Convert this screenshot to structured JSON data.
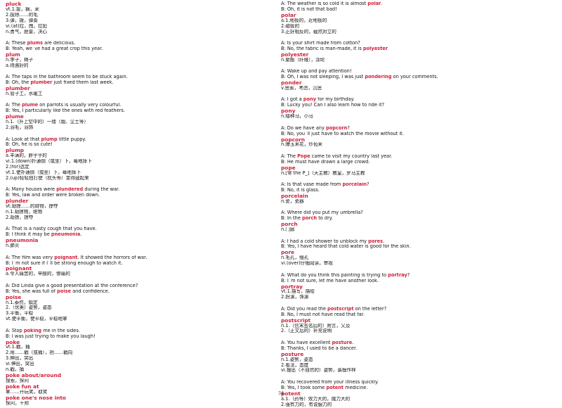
{
  "page_number": "34",
  "left_column": [
    {
      "headword": "pluck",
      "definitions": [
        "vt.1.拔，摘，采",
        "2.拔除……的毛",
        "3.弹，拨，弹奏",
        "vi.(at)拉，拽，拉扯",
        "n.勇气，胆量，决心"
      ]
    },
    {
      "dialog": [
        [
          "A: These ",
          "plums",
          " are delicious."
        ],
        [
          "B: Yeah, we`ve had a great crop this year."
        ]
      ],
      "headword": "plum",
      "definitions": [
        "n.李子，梅子",
        "a.待遇好的"
      ]
    },
    {
      "dialog": [
        [
          "A: The taps in the bathroom seem to be stuck again."
        ],
        [
          "B: Oh, the ",
          "plumber",
          " just fixed them last week."
        ]
      ],
      "headword": "plumber",
      "definitions": [
        "n.管子工，水暖工"
      ]
    },
    {
      "dialog": [
        [
          "A: The ",
          "plume",
          " on parrots is usually very colourful."
        ],
        [
          "B: Yes, I particularly like the ones with red feathers."
        ]
      ],
      "headword": "plume",
      "definitions": [
        "n.1.（升上空中的）一缕（烟、尘土等）",
        "2.羽毛，羽饰"
      ]
    },
    {
      "dialog": [
        [
          "A: Look at that ",
          "plump",
          " little puppy."
        ],
        [
          "B: Oh, he is so cute!"
        ]
      ],
      "headword": "plump",
      "definitions": [
        "a.丰满的，胖乎乎的",
        "vi.1.(down)扑通倒（或坐）下，蓦地摔下",
        "2.(for)选定",
        "vt.1.使扑通倒（或坐）下，蓦地摔下",
        "2.(up)轻轻拍打使（枕头等）变得鼓起来"
      ]
    },
    {
      "dialog": [
        [
          "A: Many houses were ",
          "plundered",
          " during the war."
        ],
        [
          "B: Yes, law and order were broken down."
        ]
      ],
      "headword": "plunder",
      "definitions": [
        "vt.劫掠……的财物，掠夺",
        "n.1.劫掠物，赃物",
        "2.劫掠，掠夺"
      ]
    },
    {
      "dialog": [
        [
          "A: That is a nasty cough that you have."
        ],
        [
          "B: I think it may be ",
          "pneumonia",
          "."
        ]
      ],
      "headword": "pneumonia",
      "definitions": [
        "n.肺炎"
      ]
    },
    {
      "dialog": [
        [
          "A: The film was very ",
          "poignant",
          ". It showed the horrors of war."
        ],
        [
          "B: I`m not sure if I`ll be strong enough to watch it."
        ]
      ],
      "headword": "poignant",
      "definitions": [
        "a.令人痛苦的，辛酸的，惨痛的"
      ]
    },
    {
      "dialog": [
        [
          "A: Did Linda give a good presentation at the conference?"
        ],
        [
          "B: Yes, she was full of ",
          "poise",
          " and confidence."
        ]
      ],
      "headword": "poise",
      "definitions": [
        "n.1.泰然，镇定",
        "2.（优美）姿势，姿态",
        "3.平衡，平稳",
        "vt.使平衡，使平稳，平稳地拿"
      ]
    },
    {
      "dialog": [
        [
          "A: Stop ",
          "poking",
          " me in the sides."
        ],
        [
          "B: I was just trying to make you laugh!"
        ]
      ],
      "headword": "poke",
      "definitions": [
        "vt.1.戳，捅",
        "2.用……戳（或捅），把……戳向",
        "3.伸出，突出",
        "vi.伸出，突出",
        "n.戳，捅"
      ]
    },
    {
      "headword": "poke about/around",
      "definitions": [
        "搜索，探问"
      ]
    },
    {
      "headword": "poke fun at",
      "definitions": [
        "拿……开玩笑，取笑"
      ]
    },
    {
      "headword": "poke one's nose into",
      "definitions": [
        "探问，干预"
      ]
    }
  ],
  "right_column": [
    {
      "dialog": [
        [
          "A: The weather is so cold it is almost ",
          "polar",
          "."
        ],
        [
          "B: Oh, it is not that bad!"
        ]
      ],
      "headword": "polar",
      "definitions": [
        "a.1.地极的，近地极的",
        "2.磁极的",
        "3.正好相反的，截然对立的"
      ]
    },
    {
      "dialog": [
        [
          "A: Is your shirt made from cotton?"
        ],
        [
          "B: No, the fabric is man-made, it is ",
          "polyester"
        ]
      ],
      "headword": "polyester",
      "definitions": [
        "n.聚酯（纤维），涤纶"
      ]
    },
    {
      "dialog": [
        [
          "A: Wake up and pay attention!"
        ],
        [
          "B: Oh, I was not sleeping, I was just ",
          "pondering",
          " on your comments."
        ]
      ],
      "headword": "ponder",
      "definitions": [
        "v.思索，考虑，沉思"
      ]
    },
    {
      "dialog": [
        [
          "A: I got a ",
          "pony",
          " for my birthday."
        ],
        [
          "B: Lucky you! Can I also learn how to ride it?"
        ]
      ],
      "headword": "pony",
      "definitions": [
        "n.矮种马，小马"
      ]
    },
    {
      "dialog": [
        [
          "A: Do we have any ",
          "popcorn",
          "?"
        ],
        [
          "B: No, you`ll just have to watch the movie without it."
        ]
      ],
      "headword": "popcorn",
      "definitions": [
        "n.爆玉米花，炒苞米"
      ]
    },
    {
      "dialog": [
        [
          "A: The ",
          "Pope",
          " came to visit my country last year."
        ],
        [
          "B: He must have drawn a large crowd."
        ]
      ],
      "headword": "pope",
      "definitions": [
        "n.[常 the P_]（天主教）教皇，罗马主教"
      ]
    },
    {
      "dialog": [
        [
          "A: Is that vase made from ",
          "porcelain",
          "?"
        ],
        [
          "B: No, it is glass."
        ]
      ],
      "headword": "porcelain",
      "definitions": [
        "n.瓷，瓷器"
      ]
    },
    {
      "dialog": [
        [
          "A: Where did you put my umbrella?"
        ],
        [
          "B: In the ",
          "porch",
          " to dry."
        ]
      ],
      "headword": "porch",
      "definitions": [
        "n.门廊"
      ]
    },
    {
      "dialog": [
        [
          "A: I had a cold shower to unblock my ",
          "pores",
          "."
        ],
        [
          "B: Yes, I have heard that cold water is good for the skin."
        ]
      ],
      "headword": "pore",
      "definitions": [
        "n.毛孔，细孔",
        "vi.(over)仔细阅读，审视"
      ]
    },
    {
      "dialog": [
        [
          "A: What do you think this painting is trying to ",
          "portray",
          "?"
        ],
        [
          "B: I`m not sure, let me have another look."
        ]
      ],
      "headword": "portray",
      "definitions": [
        "vt.1.描写，描绘",
        "2.扮演，饰演"
      ]
    },
    {
      "dialog": [
        [
          "A: Did you read the ",
          "postscript",
          " on the letter?"
        ],
        [
          "B: No, I must not have read that far."
        ]
      ],
      "headword": "postscript",
      "definitions": [
        "n.1.（信末签名后的）附言，又及",
        "2.（正文后的）补充说明"
      ]
    },
    {
      "dialog": [
        [
          "A: You have excellent ",
          "posture",
          "."
        ],
        [
          "B: Thanks, I used to be a dancer."
        ]
      ],
      "headword": "posture",
      "definitions": [
        "n.1.姿势，姿态",
        "2.看法，态度",
        "vi.摆出（不自然的）姿势，装模作样"
      ]
    },
    {
      "dialog": [
        [
          "A: You recovered from your illness quickly."
        ],
        [
          "B: Yes, I took some ",
          "potent",
          " medicine."
        ]
      ],
      "headword": "potent",
      "definitions": [
        "a.1.（药等）效力大的，威力大的",
        "2.强有力的，有说服力的"
      ]
    }
  ]
}
